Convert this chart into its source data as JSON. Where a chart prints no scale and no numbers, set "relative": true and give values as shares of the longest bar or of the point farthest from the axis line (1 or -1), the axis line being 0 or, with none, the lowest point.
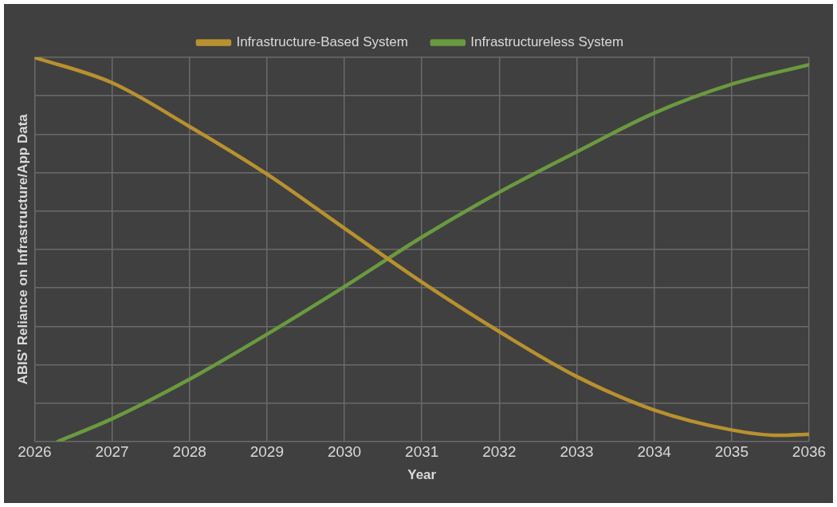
{
  "chart_data": {
    "type": "line",
    "relative": true,
    "xlabel": "Year",
    "ylabel": "ABIS' Reliance on Infrastructure/App Data",
    "xlim": [
      2026,
      2036
    ],
    "xticks": [
      2026,
      2027,
      2028,
      2029,
      2030,
      2031,
      2032,
      2033,
      2034,
      2035,
      2036
    ],
    "grid": true,
    "legend": "top",
    "marker": "none",
    "line_style": "solid",
    "series": [
      {
        "name": "Infrastructure-Based System",
        "color": "#b8912f",
        "x": [
          2026,
          2027,
          2028,
          2029,
          2030,
          2031,
          2032,
          2033,
          2034,
          2035,
          2035.6,
          2036
        ],
        "values": [
          1.0,
          0.934,
          0.82,
          0.696,
          0.555,
          0.415,
          0.286,
          0.169,
          0.082,
          0.03,
          0.016,
          0.019
        ]
      },
      {
        "name": "Infrastructureless System",
        "color": "#6a9a3f",
        "x": [
          2026.3,
          2027,
          2028,
          2029,
          2030,
          2031,
          2032,
          2033,
          2034,
          2035,
          2036
        ],
        "values": [
          0,
          0.059,
          0.162,
          0.279,
          0.403,
          0.532,
          0.649,
          0.754,
          0.855,
          0.93,
          0.981
        ]
      }
    ]
  }
}
